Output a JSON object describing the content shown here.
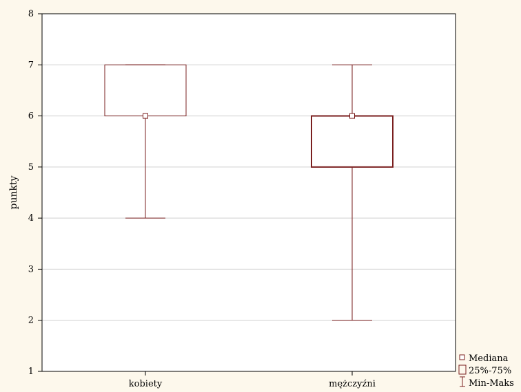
{
  "chart_data": {
    "type": "box",
    "categories": [
      "kobiety",
      "mężczyźni"
    ],
    "boxes": [
      {
        "category": "kobiety",
        "min": 4,
        "q1": 6,
        "median": 6,
        "q3": 7,
        "max": 7
      },
      {
        "category": "mężczyźni",
        "min": 2,
        "q1": 5,
        "median": 6,
        "q3": 6,
        "max": 7
      }
    ],
    "ylabel": "punkty",
    "ylim": [
      1,
      8
    ],
    "yticks": [
      "1",
      "2",
      "3",
      "4",
      "5",
      "6",
      "7",
      "8"
    ],
    "grid": true,
    "legend_position": "bottom-right",
    "legend": {
      "median": "Mediana",
      "box": "25%-75%",
      "whisker": "Min-Maks"
    },
    "colors": {
      "series": "#7a1f1f",
      "grid": "#cfcfcf",
      "background": "#fdf8ec",
      "plot_background": "#ffffff"
    }
  }
}
